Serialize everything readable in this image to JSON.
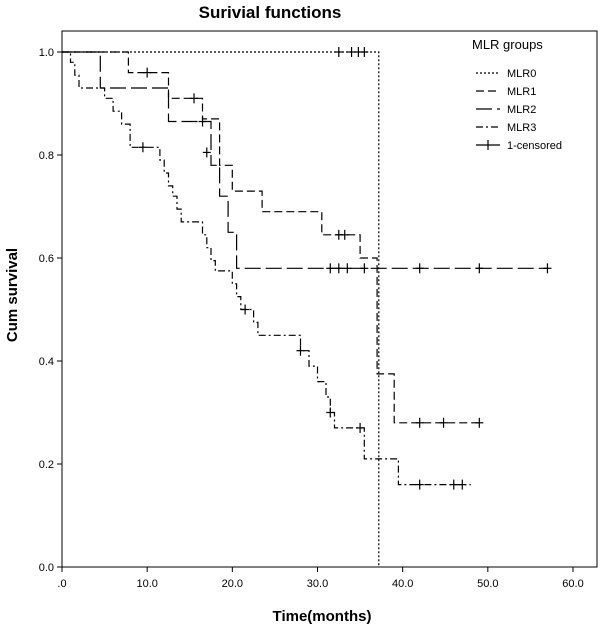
{
  "chart_data": {
    "type": "line",
    "subtype": "kaplan-meier step",
    "title": "Surivial functions",
    "xlabel": "Time(months)",
    "ylabel": "Cum survival",
    "xlim": [
      0,
      65
    ],
    "ylim": [
      0,
      1.02
    ],
    "x_ticks": [
      0,
      10,
      20,
      30,
      40,
      50,
      60
    ],
    "x_tick_labels": [
      ".0",
      "10.0",
      "20.0",
      "30.0",
      "40.0",
      "50.0",
      "60.0"
    ],
    "y_ticks": [
      0,
      0.2,
      0.4,
      0.6,
      0.8,
      1.0
    ],
    "y_tick_labels": [
      "0.0",
      "0.2",
      "0.4",
      "0.6",
      "0.8",
      "1.0"
    ],
    "grid": false,
    "legend": {
      "title": "MLR groups",
      "placement": "top-right",
      "entries": [
        "MLR0",
        "MLR1",
        "MLR2",
        "MLR3",
        "1-censored"
      ]
    },
    "series": [
      {
        "name": "MLR0",
        "line_style": "dotted",
        "points": [
          [
            0,
            1.0
          ],
          [
            37.2,
            1.0
          ],
          [
            37.2,
            0.0
          ]
        ],
        "censored": [
          [
            32.5,
            1.0
          ],
          [
            34.0,
            1.0
          ],
          [
            34.8,
            1.0
          ],
          [
            35.5,
            1.0
          ]
        ]
      },
      {
        "name": "MLR1",
        "line_style": "dashed",
        "points": [
          [
            0,
            1.0
          ],
          [
            7.8,
            1.0
          ],
          [
            7.8,
            0.96
          ],
          [
            10.2,
            0.96
          ],
          [
            10.2,
            0.96
          ],
          [
            12.5,
            0.96
          ],
          [
            12.5,
            0.91
          ],
          [
            16.5,
            0.91
          ],
          [
            16.5,
            0.87
          ],
          [
            18.5,
            0.87
          ],
          [
            18.5,
            0.78
          ],
          [
            20.0,
            0.78
          ],
          [
            20.0,
            0.73
          ],
          [
            23.5,
            0.73
          ],
          [
            23.5,
            0.69
          ],
          [
            30.5,
            0.69
          ],
          [
            30.5,
            0.645
          ],
          [
            33.0,
            0.645
          ],
          [
            33.0,
            0.645
          ],
          [
            35.0,
            0.645
          ],
          [
            35.0,
            0.6
          ],
          [
            37.0,
            0.6
          ],
          [
            37.0,
            0.375
          ],
          [
            39.0,
            0.375
          ],
          [
            39.0,
            0.28
          ],
          [
            49.0,
            0.28
          ]
        ],
        "censored": [
          [
            10.0,
            0.96
          ],
          [
            15.5,
            0.91
          ],
          [
            32.5,
            0.645
          ],
          [
            33.2,
            0.645
          ],
          [
            42.0,
            0.28
          ],
          [
            44.8,
            0.28
          ],
          [
            49.0,
            0.28
          ]
        ]
      },
      {
        "name": "MLR2",
        "line_style": "long-dash",
        "points": [
          [
            0,
            1.0
          ],
          [
            4.5,
            1.0
          ],
          [
            4.5,
            0.93
          ],
          [
            12.5,
            0.93
          ],
          [
            12.5,
            0.865
          ],
          [
            15.0,
            0.865
          ],
          [
            15.0,
            0.865
          ],
          [
            17.5,
            0.865
          ],
          [
            17.5,
            0.78
          ],
          [
            18.5,
            0.78
          ],
          [
            18.5,
            0.72
          ],
          [
            19.5,
            0.72
          ],
          [
            19.5,
            0.65
          ],
          [
            20.5,
            0.65
          ],
          [
            20.5,
            0.58
          ],
          [
            57.0,
            0.58
          ]
        ],
        "censored": [
          [
            16.5,
            0.865
          ],
          [
            17.0,
            0.805
          ],
          [
            31.5,
            0.58
          ],
          [
            32.5,
            0.58
          ],
          [
            33.5,
            0.58
          ],
          [
            35.5,
            0.58
          ],
          [
            42.0,
            0.58
          ],
          [
            49.0,
            0.58
          ],
          [
            57.0,
            0.58
          ]
        ]
      },
      {
        "name": "MLR3",
        "line_style": "dash-dot",
        "points": [
          [
            0,
            1.0
          ],
          [
            1.0,
            1.0
          ],
          [
            1.0,
            0.98
          ],
          [
            1.5,
            0.98
          ],
          [
            1.5,
            0.955
          ],
          [
            2.0,
            0.955
          ],
          [
            2.0,
            0.93
          ],
          [
            3.5,
            0.93
          ],
          [
            3.5,
            0.93
          ],
          [
            5.0,
            0.93
          ],
          [
            5.0,
            0.91
          ],
          [
            6.0,
            0.91
          ],
          [
            6.0,
            0.885
          ],
          [
            7.0,
            0.885
          ],
          [
            7.0,
            0.86
          ],
          [
            8.0,
            0.86
          ],
          [
            8.0,
            0.815
          ],
          [
            11.5,
            0.815
          ],
          [
            11.5,
            0.79
          ],
          [
            12.0,
            0.79
          ],
          [
            12.0,
            0.765
          ],
          [
            12.5,
            0.765
          ],
          [
            12.5,
            0.74
          ],
          [
            13.0,
            0.74
          ],
          [
            13.0,
            0.72
          ],
          [
            13.5,
            0.72
          ],
          [
            13.5,
            0.695
          ],
          [
            14.0,
            0.695
          ],
          [
            14.0,
            0.67
          ],
          [
            16.5,
            0.67
          ],
          [
            16.5,
            0.645
          ],
          [
            17.0,
            0.645
          ],
          [
            17.0,
            0.62
          ],
          [
            17.5,
            0.62
          ],
          [
            17.5,
            0.595
          ],
          [
            18.0,
            0.595
          ],
          [
            18.0,
            0.575
          ],
          [
            20.0,
            0.575
          ],
          [
            20.0,
            0.55
          ],
          [
            20.5,
            0.55
          ],
          [
            20.5,
            0.525
          ],
          [
            21.0,
            0.525
          ],
          [
            21.0,
            0.5
          ],
          [
            22.5,
            0.5
          ],
          [
            22.5,
            0.475
          ],
          [
            23.0,
            0.475
          ],
          [
            23.0,
            0.45
          ],
          [
            28.0,
            0.45
          ],
          [
            28.0,
            0.42
          ],
          [
            29.0,
            0.42
          ],
          [
            29.0,
            0.39
          ],
          [
            30.0,
            0.39
          ],
          [
            30.0,
            0.36
          ],
          [
            31.0,
            0.36
          ],
          [
            31.0,
            0.33
          ],
          [
            31.5,
            0.33
          ],
          [
            31.5,
            0.3
          ],
          [
            32.0,
            0.3
          ],
          [
            32.0,
            0.27
          ],
          [
            35.5,
            0.27
          ],
          [
            35.5,
            0.21
          ],
          [
            39.5,
            0.21
          ],
          [
            39.5,
            0.16
          ],
          [
            48.0,
            0.16
          ]
        ],
        "censored": [
          [
            9.5,
            0.815
          ],
          [
            21.5,
            0.5
          ],
          [
            28.0,
            0.42
          ],
          [
            31.5,
            0.3
          ],
          [
            35.0,
            0.27
          ],
          [
            42.0,
            0.16
          ],
          [
            46.0,
            0.16
          ],
          [
            47.0,
            0.16
          ]
        ]
      }
    ]
  }
}
